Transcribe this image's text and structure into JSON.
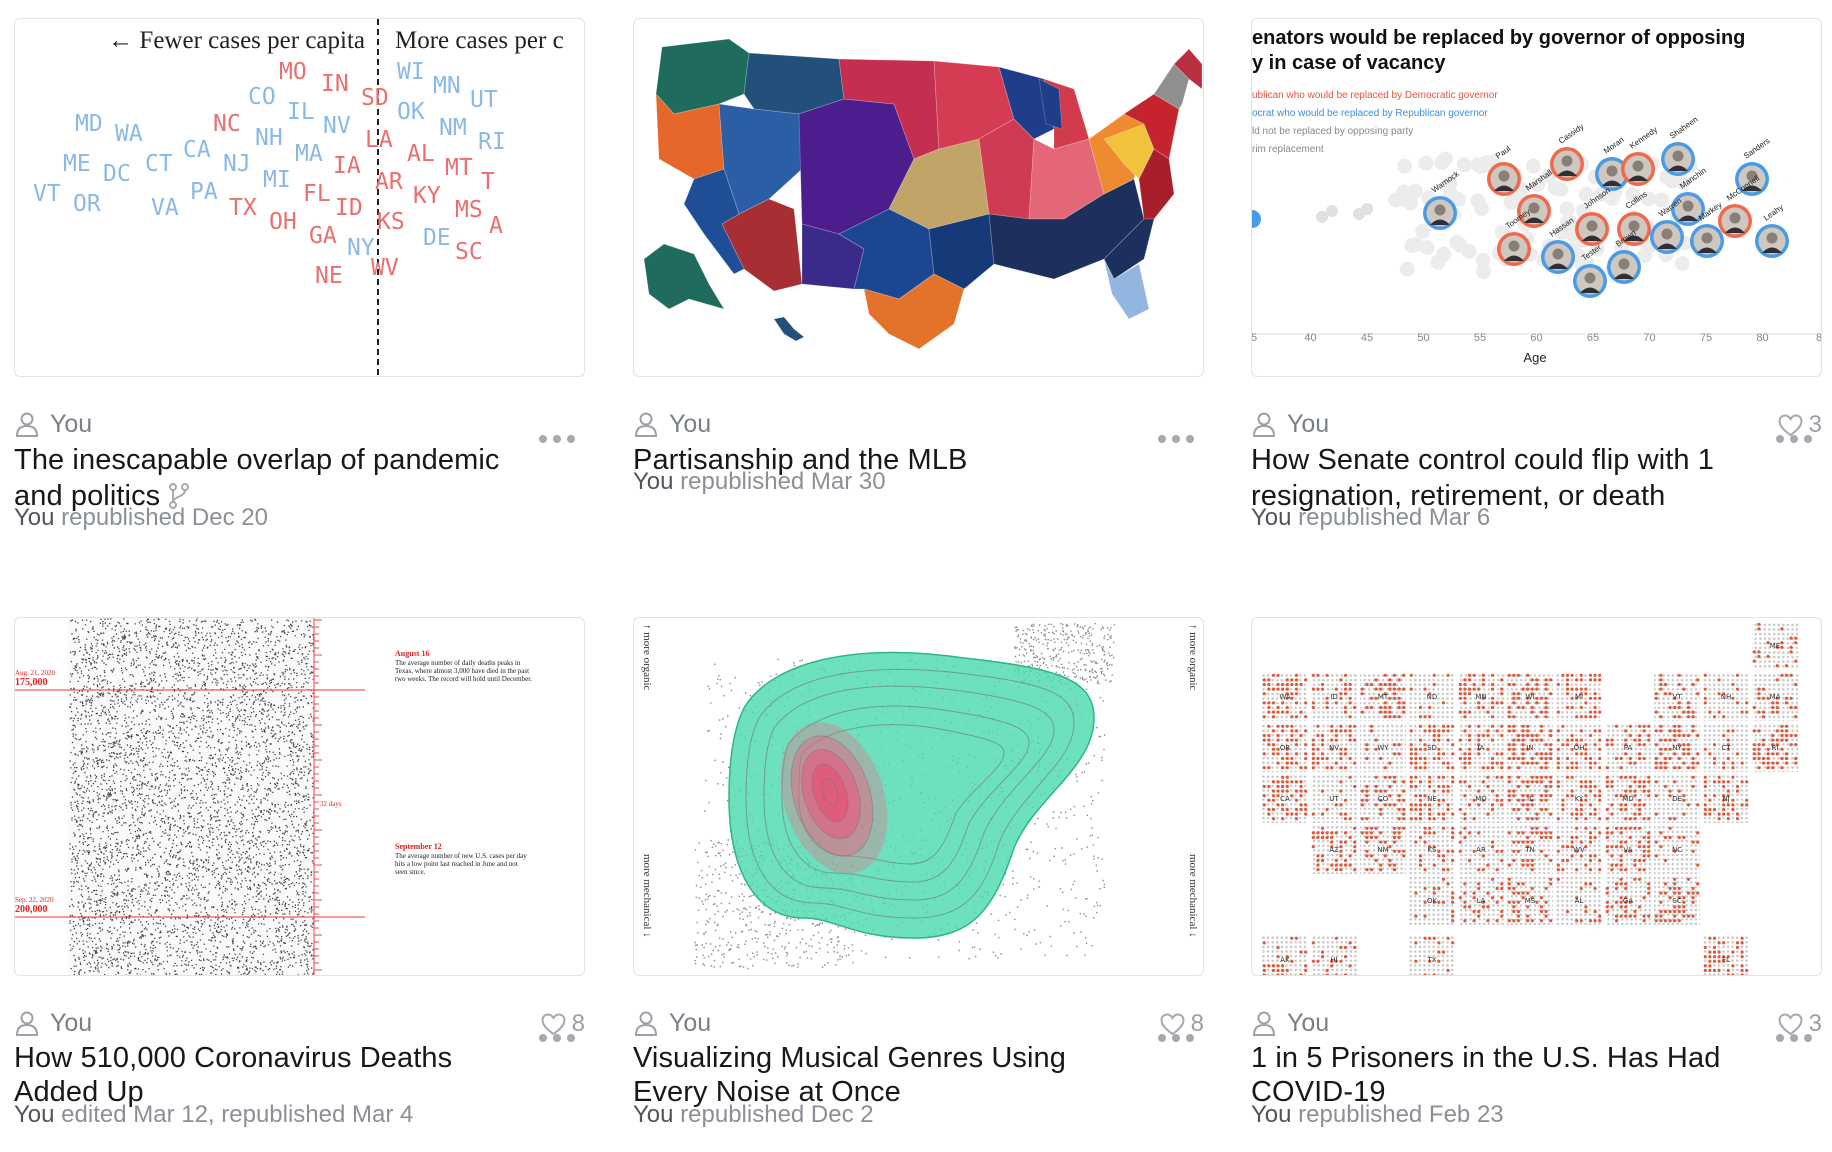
{
  "colors": {
    "author": "#7a7f87",
    "meta": "#8b9097",
    "heart": "#9a9ea5"
  },
  "cards": [
    {
      "author": "You",
      "title": "The inescapable overlap of pandemic and politics",
      "meta_you": "You",
      "meta_rest": " republished Dec 20",
      "likes": null,
      "thumb": {
        "left_label": "← Fewer cases per capita",
        "right_label": "More cases per c",
        "blue_states": [
          "MD",
          "WA",
          "ME",
          "DC",
          "CT",
          "VT",
          "OR",
          "VA",
          "CA",
          "PA",
          "CO",
          "NH",
          "NJ",
          "MI",
          "IL",
          "MA",
          "WI",
          "MN",
          "OK",
          "NM",
          "UT",
          "RI",
          "NY",
          "NV",
          "DE"
        ],
        "red_states": [
          "MO",
          "IN",
          "SD",
          "NC",
          "LA",
          "AL",
          "MT",
          "IA",
          "AR",
          "KY",
          "TX",
          "OH",
          "FL",
          "ID",
          "KS",
          "MS",
          "GA",
          "NE",
          "WV",
          "SC",
          "T",
          "A"
        ]
      }
    },
    {
      "author": "You",
      "title": "Partisanship and the MLB",
      "meta_you": "You",
      "meta_rest": " republished Mar 30",
      "likes": null
    },
    {
      "author": "You",
      "title": "How Senate control could flip with 1 resignation, retirement, or death",
      "meta_you": "You",
      "meta_rest": " republished Mar 6",
      "likes": "3",
      "thumb": {
        "title1": "enators would be replaced by governor of opposing",
        "title2": "y in case of vacancy",
        "leg_red": "ublican who would be replaced by Democratic governor",
        "leg_blue": "ocrat who would be replaced by Republican governor",
        "leg_gray1": "ld not be replaced by opposing party",
        "leg_gray2": "rim replacement",
        "axis_label": "Age",
        "ticks": [
          "5",
          "40",
          "45",
          "50",
          "55",
          "60",
          "65",
          "70",
          "75",
          "80",
          "8"
        ],
        "names": [
          "Paul",
          "Cassidy",
          "Moran",
          "Kennedy",
          "Shaheen",
          "Sanders",
          "Warnock",
          "Marshall",
          "Johnson",
          "Collins",
          "Manchin",
          "McConnell",
          "Toomey",
          "Hassan",
          "Brown",
          "Warren",
          "Markey",
          "Leahy",
          "Tester"
        ]
      }
    },
    {
      "author": "You",
      "title": "How 510,000 Coronavirus Deaths Added Up",
      "meta_you": "You",
      "meta_rest": " edited Mar 12, republished Mar 4",
      "likes": "8",
      "thumb": {
        "d1_date": "Aug. 21, 2020",
        "d1_value": "175,000",
        "d2_date": "Sep. 22, 2020",
        "d2_value": "200,000",
        "gap": "32 days",
        "ann1_title": "August 16",
        "ann1_lines": [
          "The average number of daily deaths peaks in",
          "Texas, where almost 3,000 have died in the past",
          "two weeks. The record will hold until December."
        ],
        "ann2_title": "September 12",
        "ann2_lines": [
          "The average number of new U.S. cases per day",
          "hits a low point last reached in June and not",
          "seen since."
        ]
      }
    },
    {
      "author": "You",
      "title": "Visualizing Musical Genres Using Every Noise at Once",
      "meta_you": "You",
      "meta_rest": " republished Dec 2",
      "likes": "8",
      "thumb": {
        "top_left": "↑ more organic",
        "bottom_left": "more mechanical ↓",
        "top_right": "↑ more organic",
        "bottom_right": "more mechanical ↓"
      }
    },
    {
      "author": "You",
      "title": "1 in 5 Prisoners in the U.S. Has Had COVID-19",
      "meta_you": "You",
      "meta_rest": " republished Feb 23",
      "likes": "3",
      "thumb": {
        "tiles": [
          [
            "ME",
            10,
            0
          ],
          [
            "WA",
            0,
            1
          ],
          [
            "ID",
            1,
            1
          ],
          [
            "MT",
            2,
            1
          ],
          [
            "ND",
            3,
            1
          ],
          [
            "MN",
            4,
            1
          ],
          [
            "WI",
            5,
            1
          ],
          [
            "MI",
            6,
            1
          ],
          [
            "VT",
            8,
            1
          ],
          [
            "NH",
            9,
            1
          ],
          [
            "MA",
            10,
            1
          ],
          [
            "OR",
            0,
            2
          ],
          [
            "NV",
            1,
            2
          ],
          [
            "WY",
            2,
            2
          ],
          [
            "SD",
            3,
            2
          ],
          [
            "IA",
            4,
            2
          ],
          [
            "IN",
            5,
            2
          ],
          [
            "OH",
            6,
            2
          ],
          [
            "PA",
            7,
            2
          ],
          [
            "NY",
            8,
            2
          ],
          [
            "CT",
            9,
            2
          ],
          [
            "RI",
            10,
            2
          ],
          [
            "CA",
            0,
            3
          ],
          [
            "UT",
            1,
            3
          ],
          [
            "CO",
            2,
            3
          ],
          [
            "NE",
            3,
            3
          ],
          [
            "MO",
            4,
            3
          ],
          [
            "IL",
            5,
            3
          ],
          [
            "KY",
            6,
            3
          ],
          [
            "MD",
            7,
            3
          ],
          [
            "DE",
            8,
            3
          ],
          [
            "NJ",
            9,
            3
          ],
          [
            "AZ",
            1,
            4
          ],
          [
            "NM",
            2,
            4
          ],
          [
            "KS",
            3,
            4
          ],
          [
            "AR",
            4,
            4
          ],
          [
            "TN",
            5,
            4
          ],
          [
            "WV",
            6,
            4
          ],
          [
            "VA",
            7,
            4
          ],
          [
            "NC",
            8,
            4
          ],
          [
            "OK",
            3,
            5
          ],
          [
            "LA",
            4,
            5
          ],
          [
            "MS",
            5,
            5
          ],
          [
            "AL",
            6,
            5
          ],
          [
            "GA",
            7,
            5
          ],
          [
            "SC",
            8,
            5
          ],
          [
            "AK",
            0,
            6
          ],
          [
            "HI",
            1,
            6
          ],
          [
            "TX",
            3,
            6
          ],
          [
            "FL",
            9,
            6
          ]
        ]
      }
    }
  ]
}
